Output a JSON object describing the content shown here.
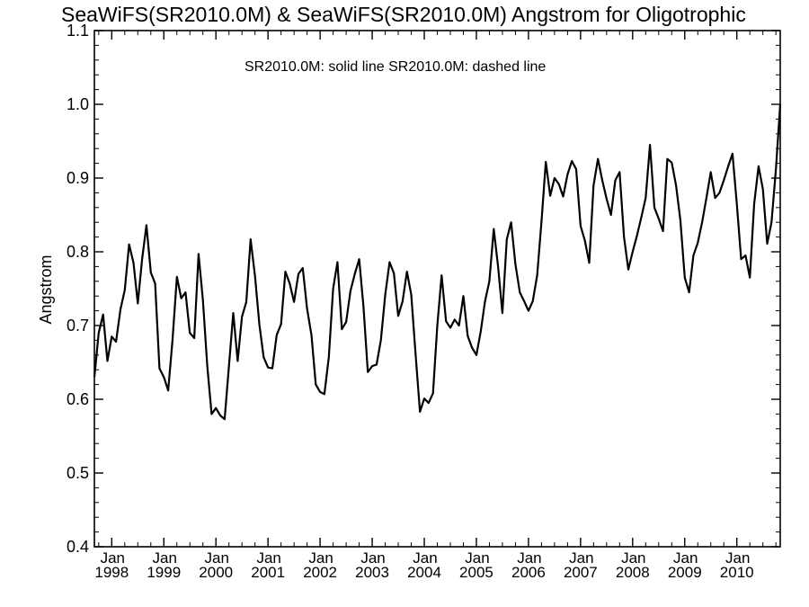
{
  "chart_data": {
    "type": "line",
    "title": "SeaWiFS(SR2010.0M) & SeaWiFS(SR2010.0M)  Angstrom for Oligotrophic",
    "legend_note": "SR2010.0M: solid line   SR2010.0M: dashed line",
    "ylabel": "Angstrom",
    "xlabel": "",
    "ylim": [
      0.4,
      1.1
    ],
    "xlim": [
      "1997-09",
      "2010-11"
    ],
    "y_ticks": [
      "0.4",
      "0.5",
      "0.6",
      "0.7",
      "0.8",
      "0.9",
      "1.0",
      "1.1"
    ],
    "x_ticks": [
      {
        "month": "Jan",
        "year": "1998"
      },
      {
        "month": "Jan",
        "year": "1999"
      },
      {
        "month": "Jan",
        "year": "2000"
      },
      {
        "month": "Jan",
        "year": "2001"
      },
      {
        "month": "Jan",
        "year": "2002"
      },
      {
        "month": "Jan",
        "year": "2003"
      },
      {
        "month": "Jan",
        "year": "2004"
      },
      {
        "month": "Jan",
        "year": "2005"
      },
      {
        "month": "Jan",
        "year": "2006"
      },
      {
        "month": "Jan",
        "year": "2007"
      },
      {
        "month": "Jan",
        "year": "2008"
      },
      {
        "month": "Jan",
        "year": "2009"
      },
      {
        "month": "Jan",
        "year": "2010"
      }
    ],
    "grid": false,
    "series": [
      {
        "style": "solid",
        "color": "#000000",
        "start": "1997-09",
        "values": [
          0.63,
          0.69,
          0.715,
          0.652,
          0.685,
          0.678,
          0.722,
          0.748,
          0.81,
          0.785,
          0.73,
          0.79,
          0.836,
          0.772,
          0.757,
          0.642,
          0.63,
          0.612,
          0.68,
          0.766,
          0.737,
          0.745,
          0.69,
          0.683,
          0.797,
          0.735,
          0.645,
          0.58,
          0.588,
          0.578,
          0.573,
          0.645,
          0.717,
          0.652,
          0.712,
          0.732,
          0.817,
          0.767,
          0.702,
          0.657,
          0.643,
          0.642,
          0.687,
          0.702,
          0.773,
          0.757,
          0.732,
          0.77,
          0.778,
          0.723,
          0.687,
          0.62,
          0.61,
          0.607,
          0.657,
          0.75,
          0.786,
          0.695,
          0.705,
          0.747,
          0.77,
          0.79,
          0.725,
          0.637,
          0.645,
          0.647,
          0.68,
          0.742,
          0.786,
          0.771,
          0.713,
          0.733,
          0.773,
          0.742,
          0.66,
          0.583,
          0.601,
          0.595,
          0.608,
          0.7,
          0.768,
          0.706,
          0.697,
          0.708,
          0.7,
          0.74,
          0.686,
          0.67,
          0.66,
          0.692,
          0.733,
          0.76,
          0.831,
          0.78,
          0.717,
          0.817,
          0.84,
          0.783,
          0.745,
          0.733,
          0.72,
          0.733,
          0.768,
          0.841,
          0.922,
          0.876,
          0.9,
          0.892,
          0.875,
          0.905,
          0.923,
          0.912,
          0.835,
          0.815,
          0.785,
          0.89,
          0.926,
          0.897,
          0.872,
          0.85,
          0.897,
          0.908,
          0.82,
          0.776,
          0.8,
          0.822,
          0.847,
          0.873,
          0.945,
          0.86,
          0.845,
          0.828,
          0.926,
          0.921,
          0.89,
          0.843,
          0.765,
          0.745,
          0.795,
          0.812,
          0.84,
          0.873,
          0.908,
          0.873,
          0.88,
          0.897,
          0.916,
          0.933,
          0.865,
          0.79,
          0.795,
          0.765,
          0.865,
          0.916,
          0.885,
          0.811,
          0.84,
          0.912,
          1.0
        ]
      }
    ]
  }
}
